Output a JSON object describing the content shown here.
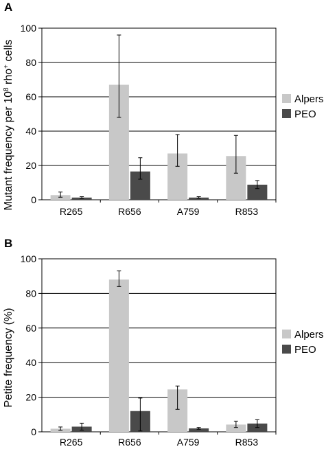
{
  "chart_data": [
    {
      "panel_label": "A",
      "type": "bar",
      "ylabel": "Mutant frequency per 10",
      "ylabel_sup": "8",
      "ylabel_mid": " rho",
      "ylabel_sup2": "+",
      "ylabel_end": " cells",
      "ylim": [
        0,
        100
      ],
      "yticks": [
        0,
        20,
        40,
        60,
        80,
        100
      ],
      "grid": true,
      "legend_position": "right",
      "categories": [
        "R265",
        "R656",
        "A759",
        "R853"
      ],
      "series": [
        {
          "name": "Alpers",
          "color": "#c8c8c8",
          "values": [
            2.7,
            67,
            27,
            25.5
          ],
          "err_low": [
            1.5,
            48,
            19.5,
            15.5
          ],
          "err_high": [
            4.5,
            96,
            38,
            37.5
          ]
        },
        {
          "name": "PEO",
          "color": "#4a4a4a",
          "values": [
            1.3,
            16.5,
            1.3,
            8.8
          ],
          "err_low": [
            0.8,
            12,
            0.9,
            6.5
          ],
          "err_high": [
            1.8,
            24.5,
            1.8,
            11.2
          ]
        }
      ]
    },
    {
      "panel_label": "B",
      "type": "bar",
      "ylabel": "Petite frequency (%)",
      "ylabel_sup": "",
      "ylabel_mid": "",
      "ylabel_sup2": "",
      "ylabel_end": "",
      "ylim": [
        0,
        100
      ],
      "yticks": [
        0,
        20,
        40,
        60,
        80,
        100
      ],
      "grid": true,
      "legend_position": "right",
      "categories": [
        "R265",
        "R656",
        "A759",
        "R853"
      ],
      "series": [
        {
          "name": "Alpers",
          "color": "#c8c8c8",
          "values": [
            1.8,
            88,
            24.5,
            4.2
          ],
          "err_low": [
            0.9,
            84,
            13,
            2.5
          ],
          "err_high": [
            2.8,
            93,
            26.5,
            6.2
          ]
        },
        {
          "name": "PEO",
          "color": "#4a4a4a",
          "values": [
            3,
            12,
            2,
            4.8
          ],
          "err_low": [
            1,
            0.5,
            1.5,
            2.5
          ],
          "err_high": [
            5,
            19.5,
            2.5,
            7
          ]
        }
      ]
    }
  ]
}
